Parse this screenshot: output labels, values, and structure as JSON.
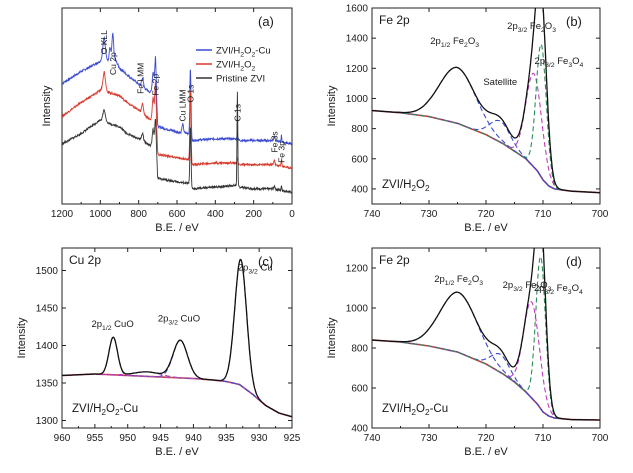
{
  "chart_data": [
    {
      "id": "a",
      "panel_label": "(a)",
      "type": "line",
      "xlabel": "B.E. / eV",
      "ylabel": "Intensity",
      "xlim": [
        1200,
        0
      ],
      "x_reversed": true,
      "xticks": [
        "1200",
        "1000",
        "800",
        "600",
        "400",
        "200",
        "0"
      ],
      "xtick_values": [
        1200,
        1000,
        800,
        600,
        400,
        200,
        0
      ],
      "show_yticks": false,
      "legend": {
        "position": "top-right",
        "entries": [
          {
            "name": "ZVI/H2O2-Cu",
            "label": [
              "ZVI/H",
              "2",
              "O",
              "2",
              "-Cu"
            ],
            "color": "#3a4ad0"
          },
          {
            "name": "ZVI/H2O2",
            "label": [
              "ZVI/H",
              "2",
              "O",
              "2"
            ],
            "color": "#d93a2e"
          },
          {
            "name": "Pristine ZVI",
            "label": [
              "Pristine ZVI"
            ],
            "color": "#333333"
          }
        ]
      },
      "annotations": [
        {
          "text": "O KLL",
          "x": 980,
          "y": 0.8
        },
        {
          "text": "Cu 2p",
          "x": 935,
          "y": 0.68
        },
        {
          "text": "Fe LMM",
          "x": 790,
          "y": 0.57
        },
        {
          "text": "Fe 2p",
          "x": 712,
          "y": 0.56
        },
        {
          "text": "O 1s",
          "x": 530,
          "y": 0.52
        },
        {
          "text": "Cu LMM",
          "x": 570,
          "y": 0.41
        },
        {
          "text": "C 1s",
          "x": 285,
          "y": 0.41
        },
        {
          "text": "Fe 3s",
          "x": 92,
          "y": 0.23
        },
        {
          "text": "Fe 3p",
          "x": 55,
          "y": 0.17
        }
      ],
      "series": [
        {
          "name": "ZVI/H2O2-Cu",
          "color": "#3a4ad0",
          "offset": 0.28,
          "base": [
            [
              1200,
              0.35
            ],
            [
              1100,
              0.42
            ],
            [
              1000,
              0.48
            ],
            [
              980,
              0.52
            ],
            [
              960,
              0.48
            ],
            [
              935,
              0.52
            ],
            [
              900,
              0.44
            ],
            [
              860,
              0.4
            ],
            [
              780,
              0.33
            ],
            [
              740,
              0.3
            ],
            [
              712,
              0.33
            ],
            [
              700,
              0.1
            ],
            [
              600,
              0.07
            ],
            [
              540,
              0.06
            ],
            [
              520,
              0.02
            ],
            [
              400,
              0.03
            ],
            [
              300,
              0.03
            ],
            [
              270,
              0.02
            ],
            [
              200,
              0.02
            ],
            [
              100,
              0.02
            ],
            [
              0,
              0.0
            ]
          ],
          "peaks": [
            [
              980,
              0.1,
              6
            ],
            [
              935,
              0.12,
              4
            ],
            [
              950,
              0.06,
              4
            ],
            [
              780,
              0.05,
              5
            ],
            [
              712,
              0.18,
              4
            ],
            [
              725,
              0.1,
              4
            ],
            [
              530,
              0.4,
              3
            ],
            [
              570,
              0.05,
              4
            ],
            [
              285,
              0.04,
              2
            ],
            [
              92,
              0.03,
              3
            ],
            [
              55,
              0.04,
              2
            ]
          ]
        },
        {
          "name": "ZVI/H2O2",
          "color": "#d93a2e",
          "offset": 0.14,
          "base": [
            [
              1200,
              0.3
            ],
            [
              1100,
              0.38
            ],
            [
              1000,
              0.45
            ],
            [
              980,
              0.48
            ],
            [
              960,
              0.44
            ],
            [
              900,
              0.42
            ],
            [
              860,
              0.38
            ],
            [
              780,
              0.32
            ],
            [
              740,
              0.28
            ],
            [
              712,
              0.3
            ],
            [
              700,
              0.08
            ],
            [
              600,
              0.06
            ],
            [
              540,
              0.05
            ],
            [
              520,
              0.02
            ],
            [
              400,
              0.03
            ],
            [
              300,
              0.03
            ],
            [
              270,
              0.02
            ],
            [
              200,
              0.02
            ],
            [
              100,
              0.02
            ],
            [
              0,
              0.0
            ]
          ],
          "peaks": [
            [
              980,
              0.08,
              6
            ],
            [
              780,
              0.05,
              5
            ],
            [
              712,
              0.2,
              4
            ],
            [
              725,
              0.12,
              4
            ],
            [
              530,
              0.42,
              3
            ],
            [
              285,
              0.04,
              2
            ],
            [
              92,
              0.03,
              3
            ],
            [
              55,
              0.04,
              2
            ]
          ]
        },
        {
          "name": "Pristine ZVI",
          "color": "#333333",
          "offset": 0.0,
          "base": [
            [
              1200,
              0.28
            ],
            [
              1100,
              0.34
            ],
            [
              1000,
              0.42
            ],
            [
              980,
              0.42
            ],
            [
              960,
              0.4
            ],
            [
              900,
              0.38
            ],
            [
              860,
              0.34
            ],
            [
              780,
              0.3
            ],
            [
              740,
              0.27
            ],
            [
              712,
              0.28
            ],
            [
              700,
              0.08
            ],
            [
              600,
              0.06
            ],
            [
              540,
              0.05
            ],
            [
              520,
              0.02
            ],
            [
              400,
              0.03
            ],
            [
              300,
              0.04
            ],
            [
              270,
              0.03
            ],
            [
              200,
              0.02
            ],
            [
              100,
              0.02
            ],
            [
              0,
              0.0
            ]
          ],
          "peaks": [
            [
              980,
              0.06,
              6
            ],
            [
              780,
              0.04,
              5
            ],
            [
              712,
              0.15,
              4
            ],
            [
              725,
              0.09,
              4
            ],
            [
              530,
              0.34,
              3
            ],
            [
              285,
              0.55,
              2
            ],
            [
              92,
              0.02,
              3
            ],
            [
              55,
              0.03,
              2
            ]
          ]
        }
      ]
    },
    {
      "id": "b",
      "panel_label": "(b)",
      "title": "Fe 2p",
      "sample_label": [
        "ZVI/H",
        "2",
        "O",
        "2"
      ],
      "type": "line",
      "xlabel": "B.E. / eV",
      "ylabel": "Intensity",
      "xlim": [
        740,
        700
      ],
      "x_reversed": true,
      "ylim": [
        300,
        1600
      ],
      "xticks": [
        "740",
        "730",
        "720",
        "710",
        "700"
      ],
      "xtick_values": [
        740,
        730,
        720,
        710,
        700
      ],
      "yticks": [
        "400",
        "600",
        "800",
        "1000",
        "1200",
        "1400",
        "1600"
      ],
      "ytick_values": [
        400,
        600,
        800,
        1000,
        1200,
        1400,
        1600
      ],
      "annotations": [
        {
          "parts": [
            "2p",
            "1/2",
            " Fe",
            "2",
            "O",
            "3"
          ],
          "x": 725.5,
          "y": 1360
        },
        {
          "parts": [
            "2p",
            "3/2",
            " Fe",
            "2",
            "O",
            "3"
          ],
          "x": 712.0,
          "y": 1460
        },
        {
          "parts": [
            "Satellite"
          ],
          "x": 717.5,
          "y": 1090
        },
        {
          "parts": [
            "2p",
            "3/2",
            " Fe",
            "3",
            "O",
            "4"
          ],
          "x": 707.2,
          "y": 1230
        }
      ],
      "background": [
        [
          740,
          920
        ],
        [
          735,
          905
        ],
        [
          730,
          880
        ],
        [
          725,
          835
        ],
        [
          720,
          760
        ],
        [
          717,
          700
        ],
        [
          715,
          650
        ],
        [
          713,
          600
        ],
        [
          711,
          520
        ],
        [
          710,
          460
        ],
        [
          709,
          420
        ],
        [
          708,
          400
        ],
        [
          705,
          385
        ],
        [
          700,
          375
        ]
      ],
      "components": [
        {
          "name": "2p1/2 Fe2O3",
          "center": 725,
          "height": 370,
          "width": 3.2,
          "color": "#3a4ad0"
        },
        {
          "name": "Satellite",
          "center": 717.5,
          "height": 140,
          "width": 1.8,
          "color": "#3a4ad0"
        },
        {
          "name": "2p3/2 Fe2O3",
          "center": 711.6,
          "height": 620,
          "width": 1.4,
          "color": "#c23cc0"
        },
        {
          "name": "2p3/2 Fe3O4",
          "center": 710.3,
          "height": 880,
          "width": 0.9,
          "color": "#2e8b57"
        }
      ]
    },
    {
      "id": "c",
      "panel_label": "(c)",
      "title": "Cu 2p",
      "sample_label": [
        "ZVI/H",
        "2",
        "O",
        "2",
        "-Cu"
      ],
      "type": "line",
      "xlabel": "B.E. / eV",
      "ylabel": "Intensity",
      "xlim": [
        960,
        925
      ],
      "x_reversed": true,
      "ylim": [
        1290,
        1530
      ],
      "xticks": [
        "960",
        "955",
        "950",
        "945",
        "940",
        "935",
        "930",
        "925"
      ],
      "xtick_values": [
        960,
        955,
        950,
        945,
        940,
        935,
        930,
        925
      ],
      "yticks": [
        "1300",
        "1350",
        "1400",
        "1450",
        "1500"
      ],
      "ytick_values": [
        1300,
        1350,
        1400,
        1450,
        1500
      ],
      "annotations": [
        {
          "parts": [
            "2p",
            "1/2",
            " CuO"
          ],
          "x": 952.3,
          "y": 1425
        },
        {
          "parts": [
            "2p",
            "3/2",
            " CuO"
          ],
          "x": 942.2,
          "y": 1432
        },
        {
          "parts": [
            "2p",
            "3/2",
            " Cu"
          ],
          "x": 930.6,
          "y": 1500
        }
      ],
      "background": [
        [
          960,
          1360
        ],
        [
          955,
          1362
        ],
        [
          950,
          1360
        ],
        [
          945,
          1358
        ],
        [
          940,
          1356
        ],
        [
          937,
          1354
        ],
        [
          935,
          1352
        ],
        [
          933,
          1348
        ],
        [
          931,
          1335
        ],
        [
          929,
          1320
        ],
        [
          927,
          1310
        ],
        [
          925,
          1305
        ]
      ],
      "components": [
        {
          "name": "2p1/2 CuO",
          "center": 952.2,
          "height": 50,
          "width": 0.65,
          "color": "#2e8b57"
        },
        {
          "name": "shakeup1",
          "center": 947,
          "height": 6,
          "width": 2.0,
          "color": "#c23cc0"
        },
        {
          "name": "2p3/2 CuO",
          "center": 942.0,
          "height": 50,
          "width": 1.1,
          "color": "#3a4ad0"
        },
        {
          "name": "2p3/2 Cu",
          "center": 932.8,
          "height": 168,
          "width": 0.9,
          "color": "#c23cc0"
        }
      ]
    },
    {
      "id": "d",
      "panel_label": "(d)",
      "title": "Fe 2p",
      "sample_label": [
        "ZVI/H",
        "2",
        "O",
        "2",
        "-Cu"
      ],
      "type": "line",
      "xlabel": "B.E. / eV",
      "ylabel": "Intensity",
      "xlim": [
        740,
        700
      ],
      "x_reversed": true,
      "ylim": [
        400,
        1300
      ],
      "xticks": [
        "740",
        "730",
        "720",
        "710",
        "700"
      ],
      "xtick_values": [
        740,
        730,
        720,
        710,
        700
      ],
      "yticks": [
        "400",
        "600",
        "800",
        "1000",
        "1200"
      ],
      "ytick_values": [
        400,
        600,
        800,
        1000,
        1200
      ],
      "annotations": [
        {
          "parts": [
            "2p",
            "1/2",
            " Fe",
            "2",
            "O",
            "3"
          ],
          "x": 724.8,
          "y": 1130
        },
        {
          "parts": [
            "2p",
            "3/2",
            " Fe",
            "2",
            "O",
            "3"
          ],
          "x": 712.8,
          "y": 1100
        },
        {
          "parts": [
            "2p",
            "3/2",
            " Fe",
            "3",
            "O",
            "4"
          ],
          "x": 707.3,
          "y": 1085
        }
      ],
      "background": [
        [
          740,
          840
        ],
        [
          735,
          830
        ],
        [
          730,
          810
        ],
        [
          725,
          780
        ],
        [
          720,
          720
        ],
        [
          717,
          670
        ],
        [
          715,
          630
        ],
        [
          713,
          580
        ],
        [
          711,
          520
        ],
        [
          710,
          480
        ],
        [
          709,
          460
        ],
        [
          708,
          450
        ],
        [
          705,
          442
        ],
        [
          700,
          440
        ]
      ],
      "components": [
        {
          "name": "2p1/2 Fe2O3",
          "center": 724.8,
          "height": 300,
          "width": 3.3,
          "color": "#3a4ad0"
        },
        {
          "name": "Satellite",
          "center": 717.5,
          "height": 90,
          "width": 1.6,
          "color": "#3a4ad0"
        },
        {
          "name": "2p3/2 Fe2O3",
          "center": 712.0,
          "height": 480,
          "width": 1.4,
          "color": "#c23cc0"
        },
        {
          "name": "2p3/2 Fe3O4",
          "center": 710.4,
          "height": 760,
          "width": 0.85,
          "color": "#2e8b57"
        }
      ]
    }
  ]
}
